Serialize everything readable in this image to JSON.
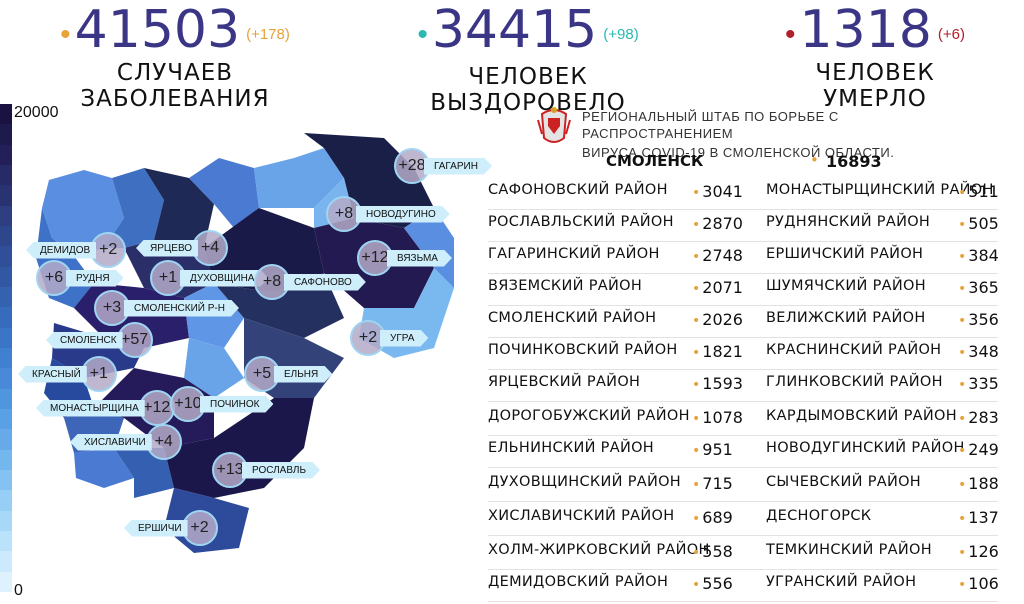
{
  "stats": [
    {
      "number": "41503",
      "delta": "(+178)",
      "label": "СЛУЧАЕВ ЗАБОЛЕВАНИЯ",
      "dot_color": "#e8a23a",
      "delta_color": "#e8a23a"
    },
    {
      "number": "34415",
      "delta": "(+98)",
      "label": "ЧЕЛОВЕК ВЫЗДОРОВЕЛО",
      "dot_color": "#2ab9b0",
      "delta_color": "#2ab9b0"
    },
    {
      "number": "1318",
      "delta": "(+6)",
      "label": "ЧЕЛОВЕК УМЕРЛО",
      "dot_color": "#b0202a",
      "delta_color": "#b0202a"
    }
  ],
  "scale": {
    "max_label": "20000",
    "min_label": "0"
  },
  "header": {
    "line1": "РЕГИОНАЛЬНЫЙ ШТАБ ПО БОРЬБЕ С РАСПРОСТРАНЕНИЕМ",
    "line2": "ВИРУСА  COVID-19 В СМОЛЕНСКОЙ ОБЛАСТИ.",
    "crest_icon": "smolensk-coat-of-arms-icon"
  },
  "smolensk": {
    "name": "СМОЛЕНСК",
    "value": "16893"
  },
  "districts_left": [
    {
      "name": "САФОНОВСКИЙ РАЙОН",
      "value": "3041"
    },
    {
      "name": "РОСЛАВЛЬСКИЙ РАЙОН",
      "value": "2870"
    },
    {
      "name": "ГАГАРИНСКИЙ РАЙОН",
      "value": "2748"
    },
    {
      "name": "ВЯЗЕМСКИЙ РАЙОН",
      "value": "2071"
    },
    {
      "name": "СМОЛЕНСКИЙ РАЙОН",
      "value": "2026"
    },
    {
      "name": "ПОЧИНКОВСКИЙ РАЙОН",
      "value": "1821"
    },
    {
      "name": "ЯРЦЕВСКИЙ РАЙОН",
      "value": "1593"
    },
    {
      "name": "ДОРОГОБУЖСКИЙ РАЙОН",
      "value": "1078"
    },
    {
      "name": "ЕЛЬНИНСКИЙ РАЙОН",
      "value": "951"
    },
    {
      "name": "ДУХОВЩИНСКИЙ РАЙОН",
      "value": "715"
    },
    {
      "name": "ХИСЛАВИЧСКИЙ РАЙОН",
      "value": "689"
    },
    {
      "name": "ХОЛМ-ЖИРКОВСКИЙ РАЙОН",
      "value": "558"
    },
    {
      "name": "ДЕМИДОВСКИЙ РАЙОН",
      "value": "556"
    }
  ],
  "districts_right": [
    {
      "name": "МОНАСТЫРЩИНСКИЙ РАЙОН",
      "value": "511"
    },
    {
      "name": "РУДНЯНСКИЙ РАЙОН",
      "value": "505"
    },
    {
      "name": "ЕРШИЧСКИЙ РАЙОН",
      "value": "384"
    },
    {
      "name": "ШУМЯЧСКИЙ РАЙОН",
      "value": "365"
    },
    {
      "name": "ВЕЛИЖСКИЙ РАЙОН",
      "value": "356"
    },
    {
      "name": "КРАСНИНСКИЙ РАЙОН",
      "value": "348"
    },
    {
      "name": "ГЛИНКОВСКИЙ РАЙОН",
      "value": "335"
    },
    {
      "name": "КАРДЫМОВСКИЙ РАЙОН",
      "value": "283"
    },
    {
      "name": "НОВОДУГИНСКИЙ РАЙОН",
      "value": "249"
    },
    {
      "name": "СЫЧЕВСКИЙ РАЙОН",
      "value": "188"
    },
    {
      "name": "ДЕСНОГОРСК",
      "value": "137"
    },
    {
      "name": "ТЕМКИНСКИЙ РАЙОН",
      "value": "126"
    },
    {
      "name": "УГРАНСКИЙ РАЙОН",
      "value": "106"
    }
  ],
  "map_badges": [
    {
      "delta": "+28",
      "label": "ГАГАРИН"
    },
    {
      "delta": "+8",
      "label": "НОВОДУГИНО"
    },
    {
      "delta": "+2",
      "label": "ДЕМИДОВ"
    },
    {
      "delta": "+4",
      "label": "ЯРЦЕВО"
    },
    {
      "delta": "+6",
      "label": "РУДНЯ"
    },
    {
      "delta": "+1",
      "label": "ДУХОВЩИНА"
    },
    {
      "delta": "+12",
      "label": "ВЯЗЬМА"
    },
    {
      "delta": "+8",
      "label": "САФОНОВО"
    },
    {
      "delta": "+3",
      "label": "СМОЛЕНСКИЙ Р-Н"
    },
    {
      "delta": "+2",
      "label": "УГРА"
    },
    {
      "delta": "+57",
      "label": "СМОЛЕНСК"
    },
    {
      "delta": "+1",
      "label": "КРАСНЫЙ"
    },
    {
      "delta": "+5",
      "label": "ЕЛЬНЯ"
    },
    {
      "delta": "+12",
      "label": "МОНАСТЫРЩИНА"
    },
    {
      "delta": "+10",
      "label": "ПОЧИНОК"
    },
    {
      "delta": "+4",
      "label": "ХИСЛАВИЧИ"
    },
    {
      "delta": "+13",
      "label": "РОСЛАВЛЬ"
    },
    {
      "delta": "+2",
      "label": "ЕРШИЧИ"
    }
  ],
  "colors": {
    "accent_dot": "#e8a23a",
    "title_number": "#3a3585",
    "tag_bg": "#cdeefa"
  }
}
